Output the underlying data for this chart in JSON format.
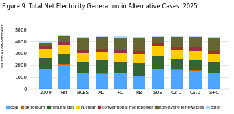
{
  "categories": [
    "2009",
    "Ref",
    "BCES",
    "AC",
    "PC",
    "RB",
    "SUE",
    "C2.1",
    "C3.0",
    "S+C"
  ],
  "series": {
    "coal": [
      1700,
      2050,
      1350,
      1250,
      1350,
      1050,
      1700,
      1600,
      1550,
      1300
    ],
    "petroleum": [
      35,
      35,
      35,
      35,
      35,
      35,
      35,
      35,
      35,
      35
    ],
    "natural gas": [
      850,
      900,
      900,
      1100,
      900,
      1100,
      1100,
      900,
      900,
      900
    ],
    "nuclear": [
      800,
      750,
      750,
      750,
      750,
      750,
      800,
      750,
      750,
      750
    ],
    "conventional hydropower": [
      250,
      250,
      250,
      250,
      250,
      250,
      250,
      250,
      250,
      250
    ],
    "non-hydro renewables": [
      300,
      500,
      1050,
      1000,
      1050,
      1100,
      500,
      850,
      900,
      1050
    ],
    "other": [
      65,
      65,
      65,
      65,
      115,
      65,
      65,
      65,
      65,
      115
    ]
  },
  "colors": {
    "coal": "#4da6ff",
    "petroleum": "#cc6600",
    "natural gas": "#336633",
    "nuclear": "#ffcc00",
    "conventional hydropower": "#993333",
    "non-hydro renewables": "#666633",
    "other": "#aaddff"
  },
  "title": "Figure 9. Total Net Electricity Generation in Alternative Cases, 2025",
  "ylabel": "billion kilowatthours",
  "ylim": [
    0,
    5000
  ],
  "yticks": [
    0,
    1000,
    2000,
    3000,
    4000,
    5000
  ],
  "title_fontsize": 6.0,
  "label_fontsize": 4.5,
  "tick_fontsize": 5.0,
  "legend_fontsize": 4.2,
  "legend_labels": [
    "coal",
    "petroleum",
    "natural gas",
    "nuclear",
    "conventional hydropower",
    "non-hydro renewables",
    "other"
  ]
}
